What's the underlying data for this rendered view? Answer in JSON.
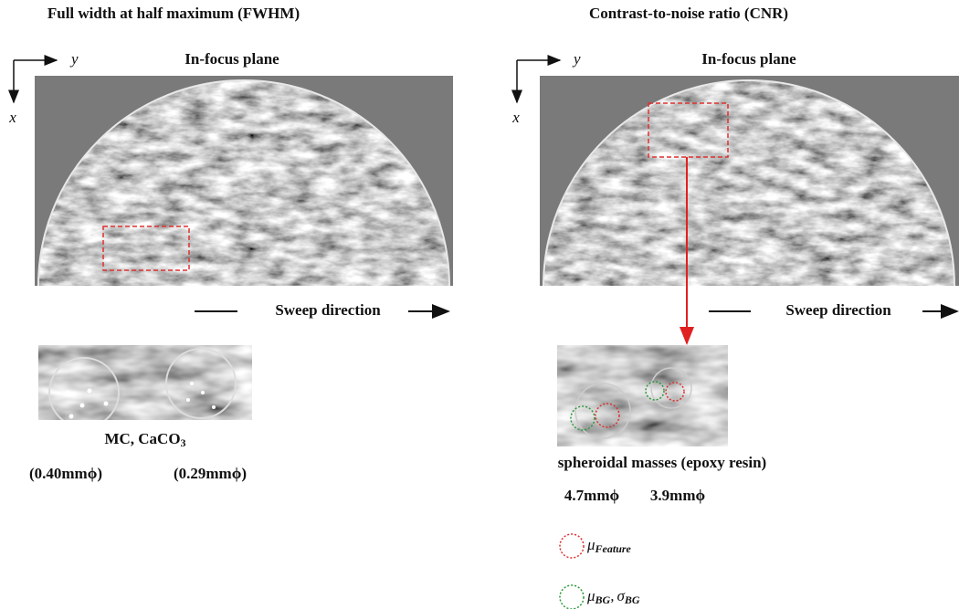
{
  "panels": [
    {
      "title": "Full width at half maximum (FWHM)",
      "axis_x": "x",
      "axis_y": "y",
      "image_label": "In-focus plane",
      "sweep": "Sweep direction",
      "caption": "MC, CaCO",
      "caption_sub": "3",
      "sizes": [
        "(0.40mmϕ)",
        "(0.29mmϕ)"
      ]
    },
    {
      "title": "Contrast-to-noise ratio (CNR)",
      "axis_x": "x",
      "axis_y": "y",
      "image_label": "In-focus plane",
      "sweep": "Sweep direction",
      "caption": "spheroidal masses (epoxy resin)",
      "sizes": [
        "4.7mmϕ",
        "3.9mmϕ"
      ],
      "legend": [
        {
          "parts": [
            {
              "s": "μ",
              "sub": "Feature"
            }
          ]
        },
        {
          "parts": [
            {
              "s": "μ",
              "sub": "BG"
            },
            {
              "s": "σ",
              "sub": "BG"
            }
          ],
          "sep": ","
        }
      ]
    }
  ]
}
